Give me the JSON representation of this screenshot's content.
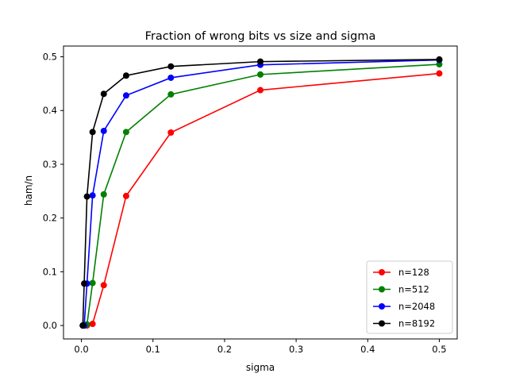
{
  "chart_data": {
    "type": "line",
    "title": "Fraction of wrong bits vs size and sigma",
    "xlabel": "sigma",
    "ylabel": "ham/n",
    "xlim": [
      -0.025,
      0.525
    ],
    "ylim": [
      -0.025,
      0.52
    ],
    "xticks": [
      0.0,
      0.1,
      0.2,
      0.3,
      0.4,
      0.5
    ],
    "xtick_labels": [
      "0.0",
      "0.1",
      "0.2",
      "0.3",
      "0.4",
      "0.5"
    ],
    "yticks": [
      0.0,
      0.1,
      0.2,
      0.3,
      0.4,
      0.5
    ],
    "ytick_labels": [
      "0.0",
      "0.1",
      "0.2",
      "0.3",
      "0.4",
      "0.5"
    ],
    "grid": false,
    "legend_position": "lower-right",
    "x": [
      0.001953125,
      0.00390625,
      0.0078125,
      0.015625,
      0.03125,
      0.0625,
      0.125,
      0.25,
      0.5
    ],
    "series": [
      {
        "name": "n=128",
        "color": "#ff0000",
        "values": [
          0.0,
          0.0,
          0.0,
          0.003,
          0.075,
          0.241,
          0.359,
          0.438,
          0.469
        ]
      },
      {
        "name": "n=512",
        "color": "#008000",
        "values": [
          0.0,
          0.0,
          0.002,
          0.079,
          0.244,
          0.36,
          0.43,
          0.467,
          0.486
        ]
      },
      {
        "name": "n=2048",
        "color": "#0000ff",
        "values": [
          0.0,
          0.0,
          0.078,
          0.242,
          0.362,
          0.428,
          0.461,
          0.485,
          0.494
        ]
      },
      {
        "name": "n=8192",
        "color": "#000000",
        "values": [
          0.0,
          0.078,
          0.24,
          0.36,
          0.431,
          0.465,
          0.482,
          0.491,
          0.495
        ]
      }
    ]
  }
}
